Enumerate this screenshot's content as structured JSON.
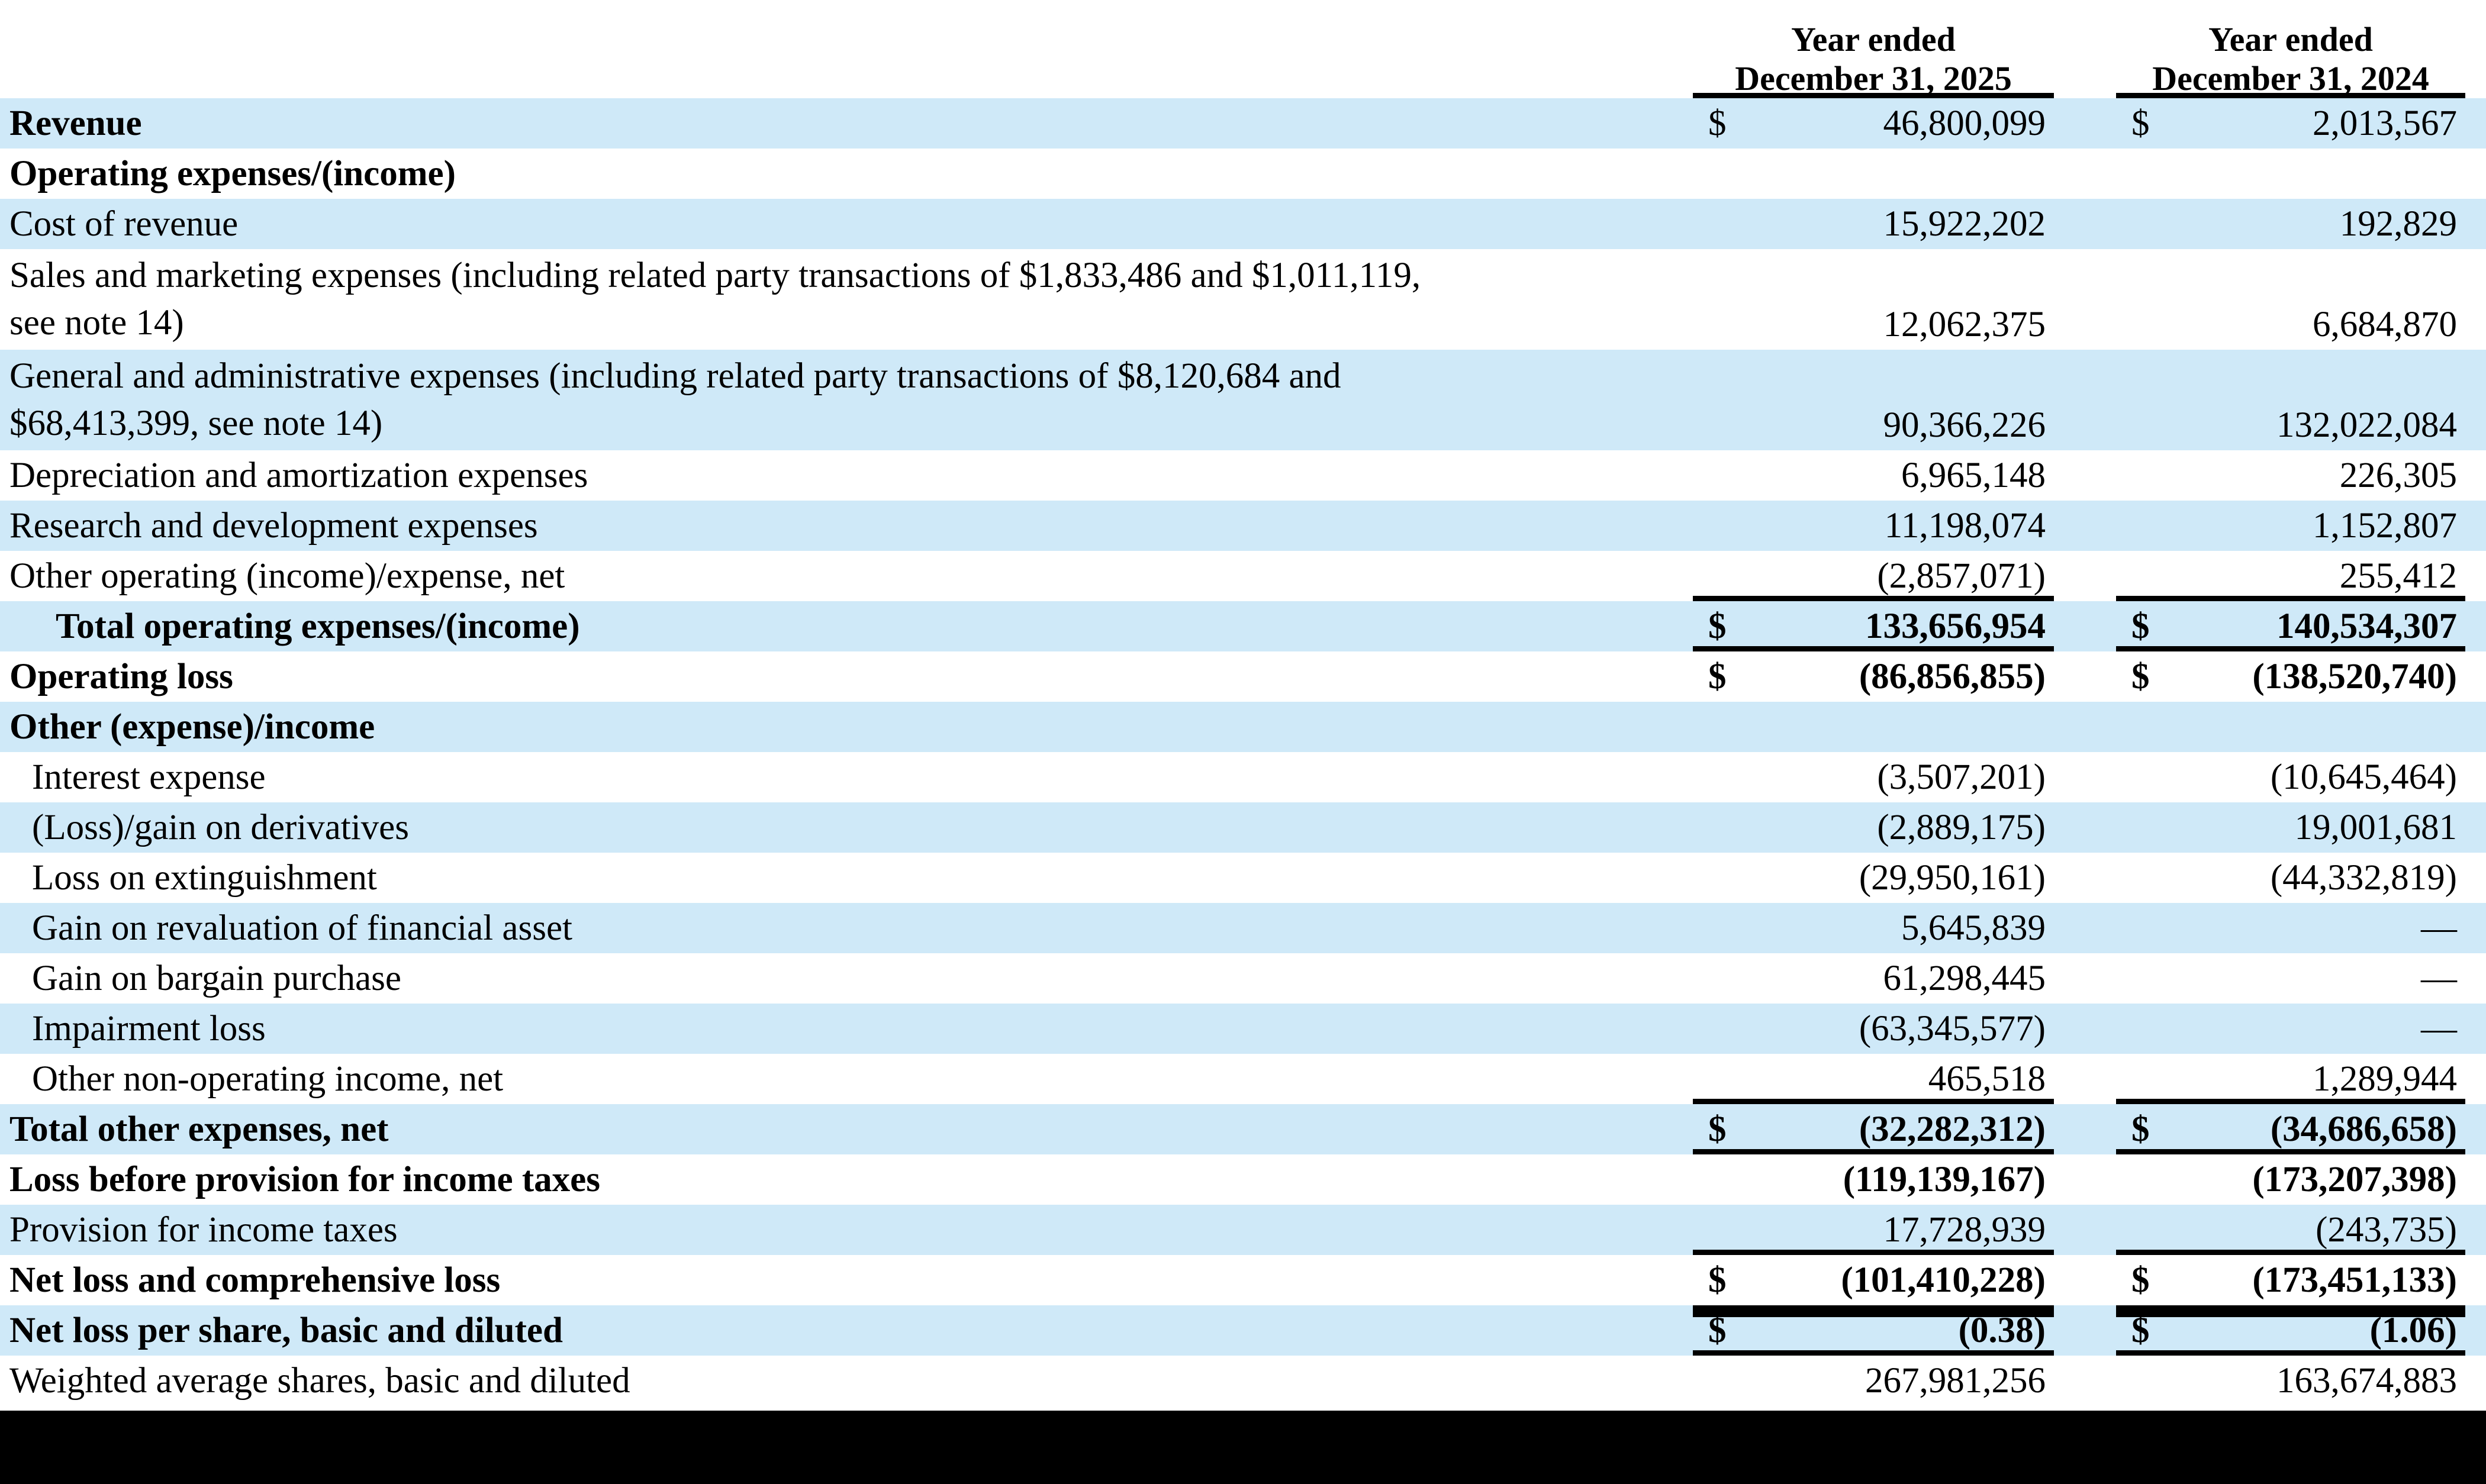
{
  "colors": {
    "stripe_blue": "#cfe9f8",
    "text": "#000000",
    "bottom_bar": "#000000"
  },
  "table": {
    "columns": [
      {
        "line1": "Year ended",
        "line2": "December 31, 2025"
      },
      {
        "line1": "Year ended",
        "line2": "December 31, 2024"
      }
    ],
    "rows": [
      {
        "label": "Revenue",
        "bold": true,
        "indent": 0,
        "lines": 1,
        "d1": "$",
        "v1": "46,800,099",
        "d2": "$",
        "v2": "2,013,567"
      },
      {
        "label": "Operating expenses/(income)",
        "bold": true,
        "indent": 0,
        "lines": 1
      },
      {
        "label": "Cost of revenue",
        "indent": 0,
        "lines": 1,
        "v1": "15,922,202",
        "v2": "192,829"
      },
      {
        "label": "Sales and marketing expenses (including related party transactions of $1,833,486 and $1,011,119,\nsee note 14)",
        "indent": 0,
        "lines": 2,
        "v1": "12,062,375",
        "v2": "6,684,870"
      },
      {
        "label": "General and administrative expenses (including related party transactions of $8,120,684 and\n$68,413,399, see note 14)",
        "indent": 0,
        "lines": 2,
        "v1": "90,366,226",
        "v2": "132,022,084"
      },
      {
        "label": "Depreciation and amortization expenses",
        "indent": 0,
        "lines": 1,
        "v1": "6,965,148",
        "v2": "226,305"
      },
      {
        "label": "Research and development expenses",
        "indent": 0,
        "lines": 1,
        "v1": "11,198,074",
        "v2": "1,152,807"
      },
      {
        "label": "Other operating (income)/expense, net",
        "indent": 0,
        "lines": 1,
        "v1": "(2,857,071)",
        "v2": "255,412",
        "line_below": true
      },
      {
        "label": "Total operating expenses/(income)",
        "bold": true,
        "bold_values": true,
        "indent": 2,
        "lines": 1,
        "d1": "$",
        "v1": "133,656,954",
        "d2": "$",
        "v2": "140,534,307",
        "line_below": true
      },
      {
        "label": "Operating loss",
        "bold": true,
        "bold_values": true,
        "indent": 0,
        "lines": 1,
        "d1": "$",
        "v1": "(86,856,855)",
        "d2": "$",
        "v2": "(138,520,740)"
      },
      {
        "label": "Other (expense)/income",
        "bold": true,
        "indent": 0,
        "lines": 1
      },
      {
        "label": "Interest expense",
        "indent": 1,
        "lines": 1,
        "v1": "(3,507,201)",
        "v2": "(10,645,464)"
      },
      {
        "label": "(Loss)/gain on derivatives",
        "indent": 1,
        "lines": 1,
        "v1": "(2,889,175)",
        "v2": "19,001,681"
      },
      {
        "label": "Loss on extinguishment",
        "indent": 1,
        "lines": 1,
        "v1": "(29,950,161)",
        "v2": "(44,332,819)"
      },
      {
        "label": "Gain on revaluation of financial asset",
        "indent": 1,
        "lines": 1,
        "v1": "5,645,839",
        "v2": "—"
      },
      {
        "label": "Gain on bargain purchase",
        "indent": 1,
        "lines": 1,
        "v1": "61,298,445",
        "v2": "—"
      },
      {
        "label": "Impairment loss",
        "indent": 1,
        "lines": 1,
        "v1": "(63,345,577)",
        "v2": "—"
      },
      {
        "label": "Other non-operating income, net",
        "indent": 1,
        "lines": 1,
        "v1": "465,518",
        "v2": "1,289,944",
        "line_below": true
      },
      {
        "label": "Total other expenses, net",
        "bold": true,
        "bold_values": true,
        "indent": 0,
        "lines": 1,
        "d1": "$",
        "v1": "(32,282,312)",
        "d2": "$",
        "v2": "(34,686,658)",
        "line_below": true
      },
      {
        "label": "Loss before provision for income taxes",
        "bold": true,
        "bold_values": true,
        "indent": 0,
        "lines": 1,
        "v1": "(119,139,167)",
        "v2": "(173,207,398)"
      },
      {
        "label": "Provision for income taxes",
        "indent": 0,
        "lines": 1,
        "v1": "17,728,939",
        "v2": "(243,735)",
        "line_below": true
      },
      {
        "label": "Net loss and comprehensive loss",
        "bold": true,
        "bold_values": true,
        "indent": 0,
        "lines": 1,
        "d1": "$",
        "v1": "(101,410,228)",
        "d2": "$",
        "v2": "(173,451,133)",
        "thick_below": true
      },
      {
        "label": "Net loss per share, basic and diluted",
        "bold": true,
        "bold_values": true,
        "indent": 0,
        "lines": 1,
        "d1": "$",
        "v1": "(0.38)",
        "d2": "$",
        "v2": "(1.06)",
        "line_below": true
      },
      {
        "label": "Weighted average shares, basic and diluted",
        "indent": 0,
        "lines": 1,
        "v1": "267,981,256",
        "v2": "163,674,883"
      }
    ]
  }
}
